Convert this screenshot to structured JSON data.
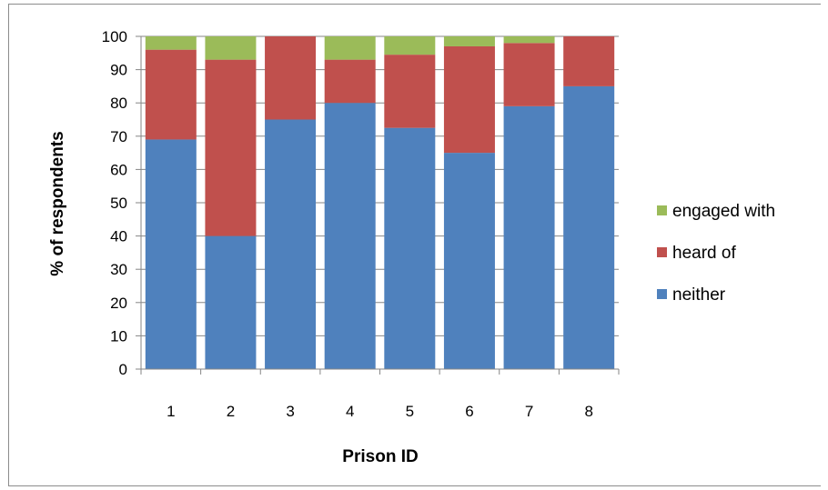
{
  "chart_data": {
    "type": "bar",
    "stacked": true,
    "title": "",
    "xlabel": "Prison ID",
    "ylabel": "% of respondents",
    "ylim": [
      0,
      100
    ],
    "yticks": [
      0,
      10,
      20,
      30,
      40,
      50,
      60,
      70,
      80,
      90,
      100
    ],
    "categories": [
      "1",
      "2",
      "3",
      "4",
      "5",
      "6",
      "7",
      "8"
    ],
    "series": [
      {
        "name": "neither",
        "color": "#4f81bd",
        "values": [
          69,
          40,
          75,
          80,
          72.5,
          65,
          79,
          85
        ]
      },
      {
        "name": "heard of",
        "color": "#c0504d",
        "values": [
          27,
          53,
          25,
          13,
          22,
          32,
          19,
          15
        ]
      },
      {
        "name": "engaged with",
        "color": "#9bbb59",
        "values": [
          4,
          7,
          0,
          7,
          5.5,
          3,
          2,
          0
        ]
      }
    ],
    "grid": true,
    "legend_position": "right",
    "legend_order": [
      "engaged with",
      "heard of",
      "neither"
    ]
  }
}
